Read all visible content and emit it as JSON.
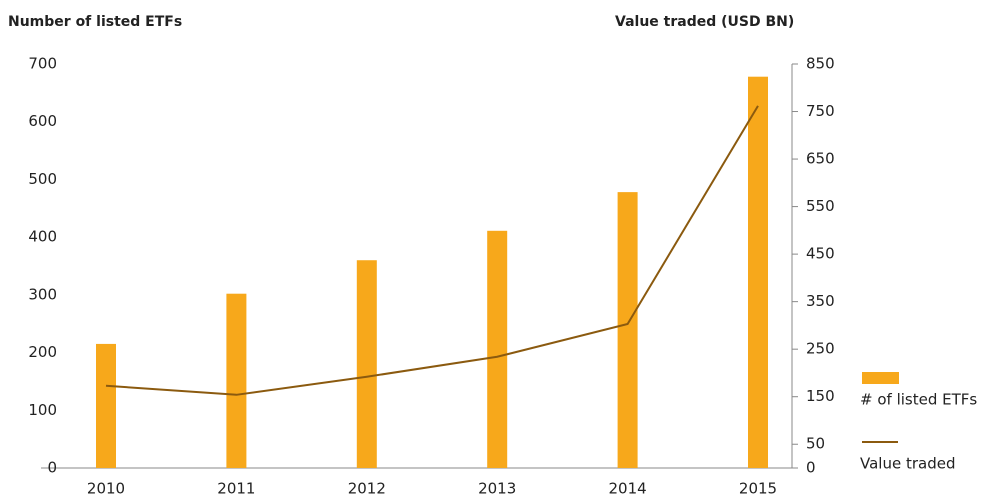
{
  "chart_data": {
    "type": "bar_line",
    "y_axis_label": "Number of listed ETFs",
    "y2_axis_label": "Value traded (USD BN)",
    "categories": [
      "2010",
      "2011",
      "2012",
      "2013",
      "2014",
      "2015"
    ],
    "series": [
      {
        "name": "# of listed ETFs",
        "color": "#f7a81b",
        "type": "bar",
        "values": [
          215,
          302,
          360,
          411,
          478,
          678
        ]
      },
      {
        "name": "Value traded",
        "color": "#8b5a0f",
        "type": "line",
        "axis": "y2",
        "values": [
          173,
          154,
          192,
          234,
          303,
          762
        ]
      }
    ],
    "ylim": [
      0,
      700
    ],
    "yticks": [
      0,
      100,
      200,
      300,
      400,
      500,
      600,
      700
    ],
    "y2lim": [
      0,
      850
    ],
    "y2ticks": [
      0,
      50,
      150,
      250,
      350,
      450,
      550,
      650,
      750,
      850
    ],
    "legend": "right"
  }
}
